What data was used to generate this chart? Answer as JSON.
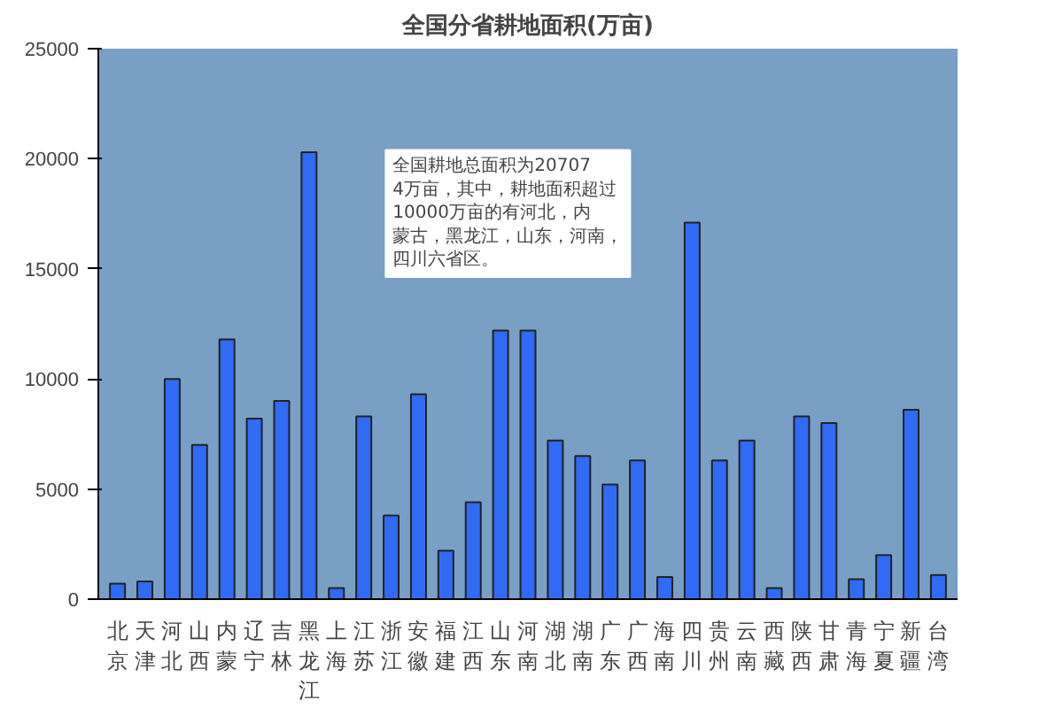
{
  "chart_data": {
    "type": "bar",
    "title": "全国分省耕地面积(万亩)",
    "categories": [
      "北京",
      "天津",
      "河北",
      "山西",
      "内蒙",
      "辽宁",
      "吉林",
      "黑龙江",
      "上海",
      "江苏",
      "浙江",
      "安徽",
      "福建",
      "江西",
      "山东",
      "河南",
      "湖北",
      "湖南",
      "广东",
      "广西",
      "海南",
      "四川",
      "贵州",
      "云南",
      "西藏",
      "陕西",
      "甘肃",
      "青海",
      "宁夏",
      "新疆",
      "台湾"
    ],
    "values": [
      700,
      800,
      10000,
      7000,
      11800,
      8200,
      9000,
      20300,
      500,
      8300,
      3800,
      9300,
      2200,
      4400,
      12200,
      12200,
      7200,
      6500,
      5200,
      6300,
      1000,
      17100,
      6300,
      7200,
      500,
      8300,
      8000,
      900,
      2000,
      8600,
      1100
    ],
    "color": "#2f6bf5",
    "ylim": [
      0,
      25000
    ],
    "yticks": [
      0,
      5000,
      10000,
      15000,
      20000,
      25000
    ],
    "grid": false,
    "annotations": [
      "全国耕地总面积为207074万亩，其中，耕地面积超过10000万亩的有河北，内蒙古，黑龙江，山东，河南，四川六省区。"
    ]
  }
}
